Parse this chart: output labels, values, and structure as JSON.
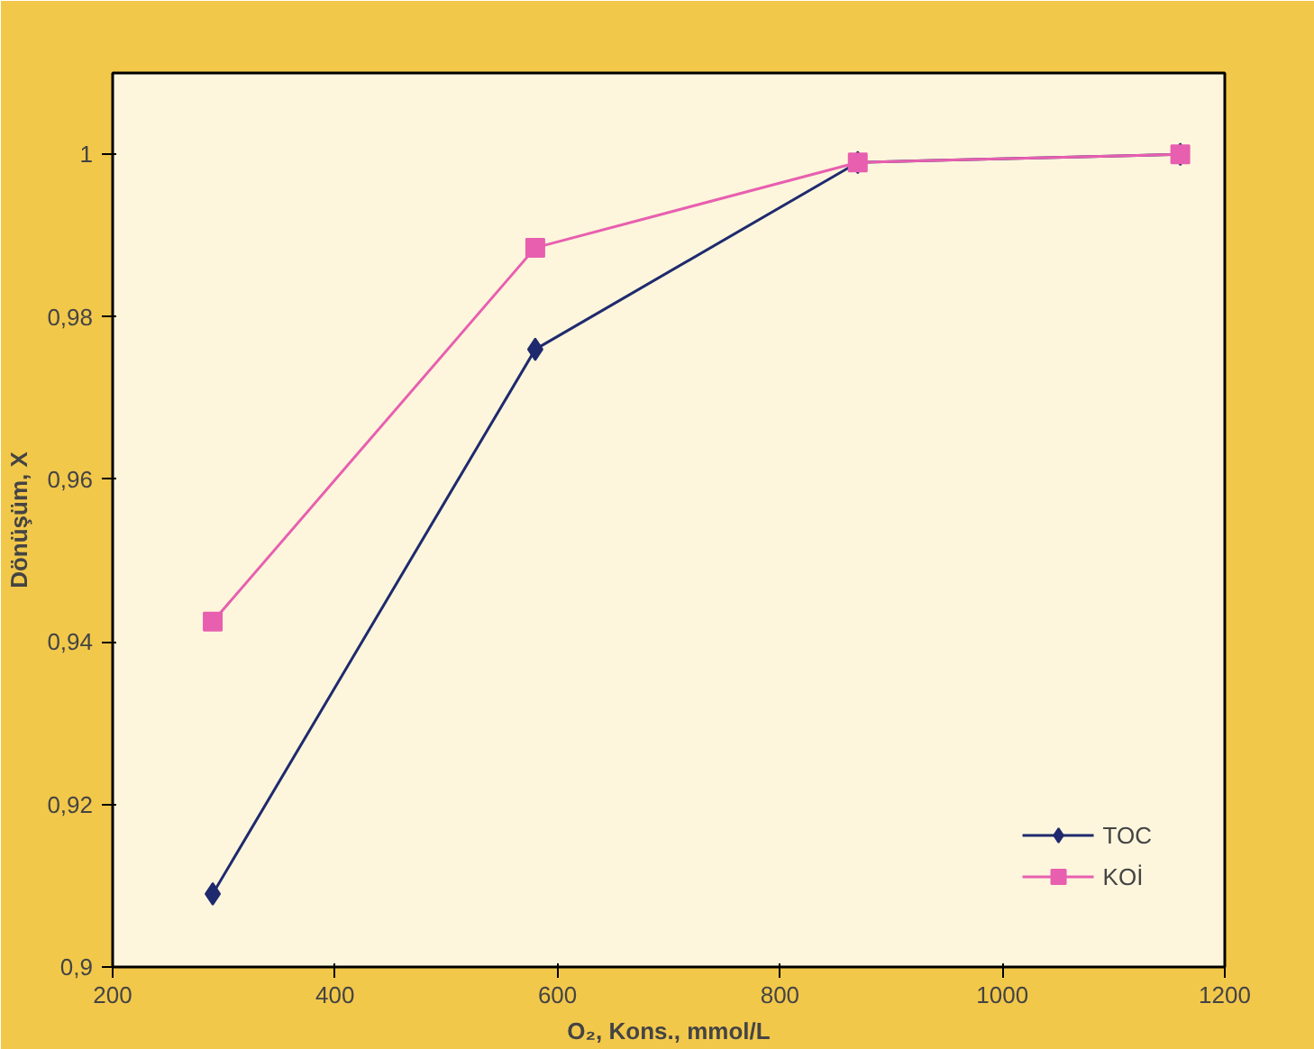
{
  "chart_data": {
    "type": "line",
    "xlabel": "O₂, Kons., mmol/L",
    "ylabel": "Dönüşüm, X",
    "xlim": [
      200,
      1200
    ],
    "xticks": [
      200,
      400,
      600,
      800,
      1000,
      1200
    ],
    "ylim": [
      0.9,
      1.01
    ],
    "yticks": [
      {
        "value": 0.9,
        "label": "0,9"
      },
      {
        "value": 0.92,
        "label": "0,92"
      },
      {
        "value": 0.94,
        "label": "0,94"
      },
      {
        "value": 0.96,
        "label": "0,96"
      },
      {
        "value": 0.98,
        "label": "0,98"
      },
      {
        "value": 1,
        "label": "1"
      }
    ],
    "grid": false,
    "legend": "bottom right",
    "series": [
      {
        "name": "TOC",
        "color": "#1f2a6e",
        "marker": "diamond",
        "x": [
          290,
          580,
          870,
          1160
        ],
        "values": [
          0.909,
          0.976,
          0.999,
          1.0
        ]
      },
      {
        "name": "KOİ",
        "color": "#e85fb0",
        "marker": "square",
        "x": [
          290,
          580,
          870,
          1160
        ],
        "values": [
          0.9425,
          0.9885,
          0.999,
          1.0
        ]
      }
    ]
  }
}
